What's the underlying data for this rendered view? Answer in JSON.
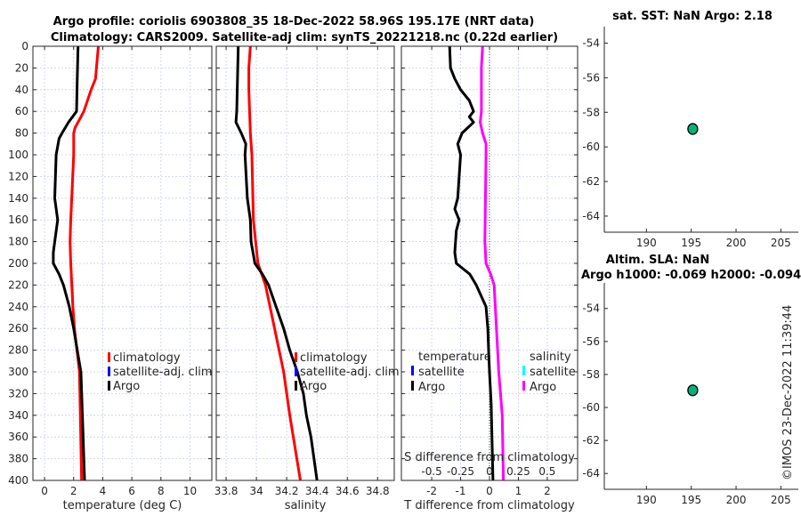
{
  "title_line1": "Argo profile: coriolis 6903808_35 18-Dec-2022 58.96S 195.17E (NRT data)",
  "title_line2": "Climatology: CARS2009. Satellite-adj clim: synTS_20221218.nc (0.22d earlier)",
  "footer_stamp": "©IMOS 23-Dec-2022 11:39:44",
  "colors": {
    "argo": "#000000",
    "climatology": "#ff0000",
    "satellite_adj": "#0000ff",
    "sal_satellite": "#00ffff",
    "sal_argo": "#ff00ff",
    "marker": "#00b37a",
    "grid": "#c8d0e0"
  },
  "chart_data": [
    {
      "id": "temperature",
      "type": "line",
      "xlabel": "temperature (deg C)",
      "ylabel": "",
      "xticks": [
        0,
        2,
        4,
        6,
        8,
        10
      ],
      "xtick_labels": [
        "0",
        "2",
        "4",
        "6",
        "8",
        "10"
      ],
      "yticks": [
        0,
        20,
        40,
        60,
        80,
        100,
        120,
        140,
        160,
        180,
        200,
        220,
        240,
        260,
        280,
        300,
        320,
        340,
        360,
        380,
        400
      ],
      "ytick_labels": [
        "0",
        "20",
        "40",
        "60",
        "80",
        "100",
        "120",
        "140",
        "160",
        "180",
        "200",
        "220",
        "240",
        "260",
        "280",
        "300",
        "320",
        "340",
        "360",
        "380",
        "400"
      ],
      "ylim": [
        0,
        400
      ],
      "y_reversed": true,
      "grid": true,
      "legend": {
        "placement": "lower-right",
        "entries": [
          "climatology",
          "satellite-adj. clim",
          "Argo"
        ]
      },
      "series": [
        {
          "name": "climatology",
          "color_key": "climatology",
          "depth": [
            0,
            30,
            40,
            60,
            75,
            80,
            100,
            160,
            180,
            200,
            240,
            260,
            300,
            400
          ],
          "values": [
            3.7,
            3.5,
            3.2,
            2.7,
            2.1,
            2.0,
            2.0,
            1.8,
            1.75,
            1.8,
            1.95,
            2.05,
            2.4,
            2.55
          ]
        },
        {
          "name": "Argo",
          "color_key": "argo",
          "depth": [
            0,
            30,
            60,
            70,
            80,
            85,
            100,
            140,
            160,
            180,
            190,
            200,
            210,
            220,
            240,
            260,
            280,
            300,
            340,
            400
          ],
          "values": [
            2.3,
            2.25,
            2.2,
            1.65,
            1.2,
            1.0,
            0.8,
            0.7,
            0.9,
            0.7,
            0.6,
            0.6,
            1.0,
            1.3,
            1.7,
            2.0,
            2.25,
            2.5,
            2.6,
            2.75
          ]
        }
      ]
    },
    {
      "id": "salinity",
      "type": "line",
      "xlabel": "salinity",
      "xticks": [
        33.8,
        34,
        34.2,
        34.4,
        34.6,
        34.8
      ],
      "xtick_labels": [
        "33.8",
        "34",
        "34.2",
        "34.4",
        "34.6",
        "34.8"
      ],
      "ylim": [
        0,
        400
      ],
      "y_reversed": true,
      "grid": true,
      "legend": {
        "placement": "lower-right",
        "entries": [
          "climatology",
          "satellite-adj. clim",
          "Argo"
        ]
      },
      "series": [
        {
          "name": "climatology",
          "color_key": "climatology",
          "depth": [
            0,
            20,
            40,
            80,
            100,
            160,
            200,
            220,
            260,
            300,
            340,
            400
          ],
          "values": [
            33.96,
            33.95,
            33.95,
            33.96,
            33.97,
            33.98,
            34.01,
            34.06,
            34.12,
            34.18,
            34.22,
            34.29
          ]
        },
        {
          "name": "Argo",
          "color_key": "argo",
          "depth": [
            0,
            60,
            70,
            80,
            90,
            100,
            140,
            160,
            180,
            200,
            210,
            220,
            240,
            260,
            280,
            300,
            320,
            340,
            360,
            380,
            400
          ],
          "values": [
            33.88,
            33.87,
            33.865,
            33.9,
            33.93,
            33.925,
            33.94,
            33.96,
            33.965,
            33.99,
            34.04,
            34.08,
            34.13,
            34.18,
            34.22,
            34.27,
            34.31,
            34.33,
            34.36,
            34.38,
            34.4
          ]
        }
      ]
    },
    {
      "id": "difference",
      "type": "line",
      "xlabel": "T difference from climatology",
      "xlabel_secondary": "S difference from climatology",
      "xticks": [
        -2,
        -1,
        0,
        1,
        2
      ],
      "xtick_labels": [
        "-2",
        "-1",
        "0",
        "1",
        "2"
      ],
      "xticks_secondary": [
        -0.5,
        -0.25,
        0,
        0.25,
        0.5
      ],
      "xtick_labels_secondary": [
        "-0.5",
        "-0.25",
        "0",
        "0.25",
        "0.5"
      ],
      "ylim": [
        0,
        400
      ],
      "y_reversed": true,
      "grid": true,
      "legend": {
        "placement": "lower",
        "temperature_heading": "temperature",
        "salinity_heading": "salinity",
        "entries": [
          "satellite",
          "Argo",
          "satellite",
          "Argo"
        ]
      },
      "series": [
        {
          "name": "T Argo",
          "color_key": "argo",
          "axis": "T",
          "depth": [
            0,
            20,
            30,
            40,
            50,
            60,
            65,
            70,
            80,
            90,
            100,
            140,
            150,
            160,
            170,
            190,
            200,
            210,
            220,
            240,
            260,
            280,
            300,
            330,
            400
          ],
          "values": [
            -1.38,
            -1.35,
            -1.2,
            -1.0,
            -0.7,
            -0.55,
            -0.7,
            -0.55,
            -0.95,
            -1.1,
            -1.0,
            -1.1,
            -1.2,
            -1.05,
            -1.15,
            -1.2,
            -1.15,
            -0.68,
            -0.46,
            -0.12,
            -0.06,
            -0.03,
            0.0,
            0.06,
            0.12
          ]
        },
        {
          "name": "S Argo",
          "color_key": "sal_argo",
          "axis": "S",
          "depth": [
            0,
            20,
            60,
            70,
            80,
            90,
            100,
            180,
            200,
            210,
            220,
            240,
            280,
            300,
            340,
            400
          ],
          "values": [
            -0.06,
            -0.07,
            -0.07,
            -0.08,
            -0.06,
            -0.03,
            -0.03,
            -0.04,
            -0.03,
            0.01,
            0.04,
            0.05,
            0.07,
            0.08,
            0.11,
            0.12
          ]
        }
      ]
    },
    {
      "id": "map_sst",
      "type": "scatter",
      "title": "sat. SST: NaN Argo: 2.18",
      "xticks": [
        190,
        195,
        200,
        205
      ],
      "xtick_labels": [
        "190",
        "195",
        "200",
        "205"
      ],
      "yticks": [
        -54,
        -56,
        -58,
        -60,
        -62,
        -64
      ],
      "ytick_labels": [
        "-54",
        "-56",
        "-58",
        "-60",
        "-62",
        "-64"
      ],
      "points": [
        {
          "x": 195.17,
          "y": -58.96
        }
      ]
    },
    {
      "id": "map_sla",
      "type": "scatter",
      "title": "Altim. SLA: NaN",
      "title_line2": "Argo h1000: -0.069 h2000: -0.094",
      "xticks": [
        190,
        195,
        200,
        205
      ],
      "xtick_labels": [
        "190",
        "195",
        "200",
        "205"
      ],
      "yticks": [
        -54,
        -56,
        -58,
        -60,
        -62,
        -64
      ],
      "ytick_labels": [
        "-54",
        "-56",
        "-58",
        "-60",
        "-62",
        "-64"
      ],
      "points": [
        {
          "x": 195.17,
          "y": -58.96
        }
      ]
    }
  ]
}
